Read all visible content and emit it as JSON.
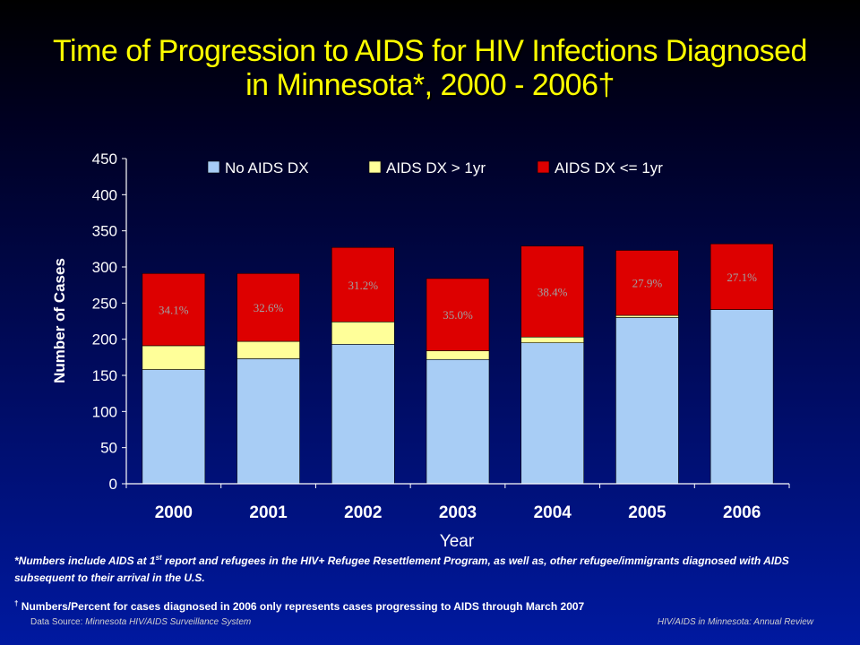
{
  "title_line1": "Time of Progression to AIDS for HIV Infections Diagnosed",
  "title_line2": "in Minnesota*, 2000 - 2006†",
  "footnote1_pre": "*Numbers include AIDS at 1",
  "footnote1_sup": "st",
  "footnote1_post": " report and refugees in the HIV+ Refugee Resettlement Program, as well as, other refugee/immigrants diagnosed with AIDS subsequent to their arrival in the U.S.",
  "footnote2_sup": "†",
  "footnote2_text": " Numbers/Percent for cases diagnosed in 2006 only represents cases progressing to AIDS through March 2007",
  "source_label": "Data Source: ",
  "source_value": "Minnesota HIV/AIDS Surveillance System",
  "source_right": "HIV/AIDS in Minnesota: Annual Review",
  "colors": {
    "no_aids": "#a8cdf5",
    "aids_gt_1yr": "#ffff99",
    "aids_le_1yr": "#dd0000",
    "title": "#ffff00",
    "axis_text": "#ffffff",
    "pct_label": "#a0a0a0"
  },
  "chart_data": {
    "type": "bar",
    "stacked": true,
    "categories": [
      "2000",
      "2001",
      "2002",
      "2003",
      "2004",
      "2005",
      "2006"
    ],
    "series": [
      {
        "name": "No AIDS DX",
        "values": [
          158,
          173,
          193,
          172,
          195,
          230,
          241
        ]
      },
      {
        "name": "AIDS DX > 1yr",
        "values": [
          33,
          24,
          31,
          12,
          8,
          3,
          0
        ]
      },
      {
        "name": "AIDS DX <= 1yr",
        "values": [
          100,
          94,
          103,
          100,
          126,
          90,
          91
        ]
      }
    ],
    "percent_labels": [
      "34.1%",
      "32.6%",
      "31.2%",
      "35.0%",
      "38.4%",
      "27.9%",
      "27.1%"
    ],
    "xlabel": "Year",
    "ylabel": "Number of Cases",
    "ylim": [
      0,
      450
    ],
    "yticks": [
      0,
      50,
      100,
      150,
      200,
      250,
      300,
      350,
      400,
      450
    ],
    "legend_position": "top",
    "grid": false
  }
}
